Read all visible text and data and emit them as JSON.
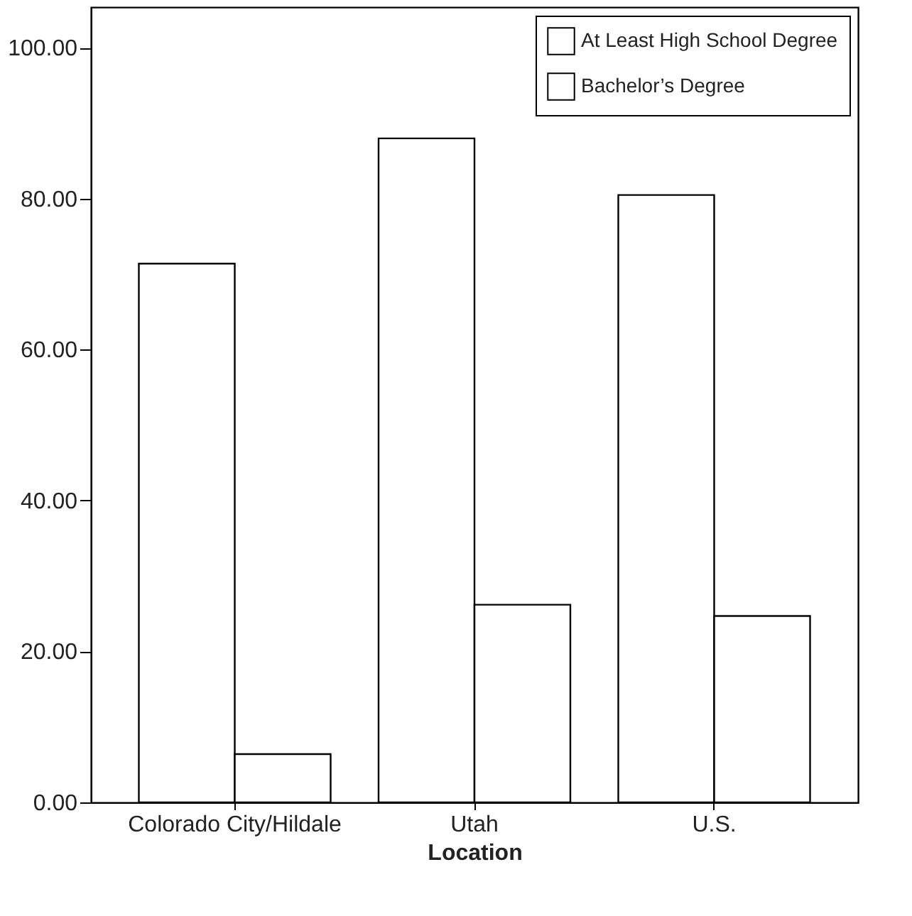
{
  "chart_data": {
    "type": "bar",
    "xlabel": "Location",
    "categories": [
      "Colorado City/Hildale",
      "Utah",
      "U.S."
    ],
    "series": [
      {
        "name": "At Least High School Degree",
        "color": "#ffffff",
        "values": [
          71.4,
          88.0,
          80.5
        ]
      },
      {
        "name": "Bachelor’s Degree",
        "color": "#ffffff",
        "values": [
          6.4,
          26.2,
          24.7
        ]
      }
    ],
    "ylim": [
      0,
      105.4
    ],
    "yticks": [
      {
        "value": 0,
        "label": "0.00"
      },
      {
        "value": 20,
        "label": "20.00"
      },
      {
        "value": 40,
        "label": "40.00"
      },
      {
        "value": 60,
        "label": "60.00"
      },
      {
        "value": 80,
        "label": "80.00"
      },
      {
        "value": 100,
        "label": "100.00"
      }
    ],
    "grid": false,
    "legend": "top right"
  }
}
